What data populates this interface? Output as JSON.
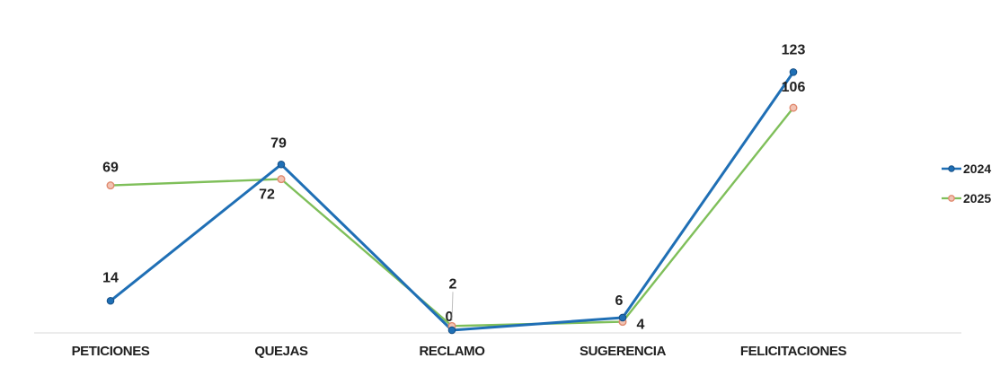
{
  "chart_data": {
    "type": "line",
    "categories": [
      "PETICIONES",
      "QUEJAS",
      "RECLAMO",
      "SUGERENCIA",
      "FELICITACIONES"
    ],
    "series": [
      {
        "name": "2024",
        "values": [
          14,
          79,
          0,
          6,
          123
        ],
        "color": "#1f6fb5"
      },
      {
        "name": "2025",
        "values": [
          69,
          72,
          2,
          4,
          106
        ],
        "color": "#7fbf5a",
        "marker_color": "#e08a6f"
      }
    ],
    "ylim": [
      0,
      130
    ],
    "grid": false,
    "legend": "right",
    "title": "",
    "xlabel": "",
    "ylabel": ""
  }
}
